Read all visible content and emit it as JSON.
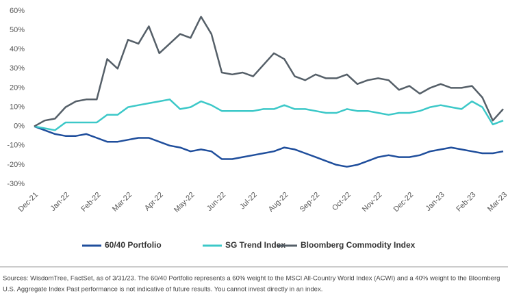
{
  "chart_data": {
    "type": "line",
    "categories": [
      "Dec-21",
      null,
      null,
      "Jan-22",
      null,
      null,
      "Feb-22",
      null,
      null,
      "Mar-22",
      null,
      null,
      "Apr-22",
      null,
      null,
      "May-22",
      null,
      null,
      "Jun-22",
      null,
      null,
      "Jul-22",
      null,
      null,
      "Aug-22",
      null,
      null,
      "Sep-22",
      null,
      null,
      "Oct-22",
      null,
      null,
      "Nov-22",
      null,
      null,
      "Dec-22",
      null,
      null,
      "Jan-23",
      null,
      null,
      "Feb-23",
      null,
      null,
      "Mar-23"
    ],
    "series": [
      {
        "name": "60/40 Portfolio",
        "color": "#1f4e9c",
        "values": [
          0,
          -2,
          -4,
          -5,
          -5,
          -4,
          -6,
          -8,
          -8,
          -7,
          -6,
          -6,
          -8,
          -10,
          -11,
          -13,
          -12,
          -13,
          -17,
          -17,
          -16,
          -15,
          -14,
          -13,
          -11,
          -12,
          -14,
          -16,
          -18,
          -20,
          -21,
          -20,
          -18,
          -16,
          -15,
          -16,
          -16,
          -15,
          -13,
          -12,
          -11,
          -12,
          -13,
          -14,
          -14,
          -13
        ]
      },
      {
        "name": "SG Trend Index",
        "color": "#3cc8c8",
        "values": [
          0,
          -1,
          -2,
          2,
          2,
          2,
          2,
          6,
          6,
          10,
          11,
          12,
          13,
          14,
          9,
          10,
          13,
          11,
          8,
          8,
          8,
          8,
          9,
          9,
          11,
          9,
          9,
          8,
          7,
          7,
          9,
          8,
          8,
          7,
          6,
          7,
          7,
          8,
          10,
          11,
          10,
          9,
          13,
          10,
          1,
          3
        ]
      },
      {
        "name": "Bloomberg Commodity Index",
        "color": "#555f68",
        "values": [
          0,
          3,
          4,
          10,
          13,
          14,
          14,
          35,
          30,
          45,
          43,
          52,
          38,
          43,
          48,
          46,
          57,
          48,
          28,
          27,
          28,
          26,
          32,
          38,
          35,
          26,
          24,
          27,
          25,
          25,
          27,
          22,
          24,
          25,
          24,
          19,
          21,
          17,
          20,
          22,
          20,
          20,
          21,
          15,
          3,
          9
        ]
      }
    ],
    "ylim": [
      -30,
      60
    ],
    "yticks": [
      {
        "value": -30,
        "label": "-30%"
      },
      {
        "value": -20,
        "label": "-20%"
      },
      {
        "value": -10,
        "label": "-10%"
      },
      {
        "value": 0,
        "label": "0%"
      },
      {
        "value": 10,
        "label": "10%"
      },
      {
        "value": 20,
        "label": "20%"
      },
      {
        "value": 30,
        "label": "30%"
      },
      {
        "value": 40,
        "label": "40%"
      },
      {
        "value": 50,
        "label": "50%"
      },
      {
        "value": 60,
        "label": "60%"
      }
    ],
    "grid": false,
    "legend": "bottom",
    "notes": [
      "Sources: WisdomTree, FactSet, as of 3/31/23. The 60/40 Portfolio represents a 60% weight to the MSCI All-Country World Index (ACWI) and a 40% weight to the Bloomberg",
      "U.S. Aggregate Index Past performance is not indicative of future results. You cannot invest directly in an index."
    ]
  }
}
